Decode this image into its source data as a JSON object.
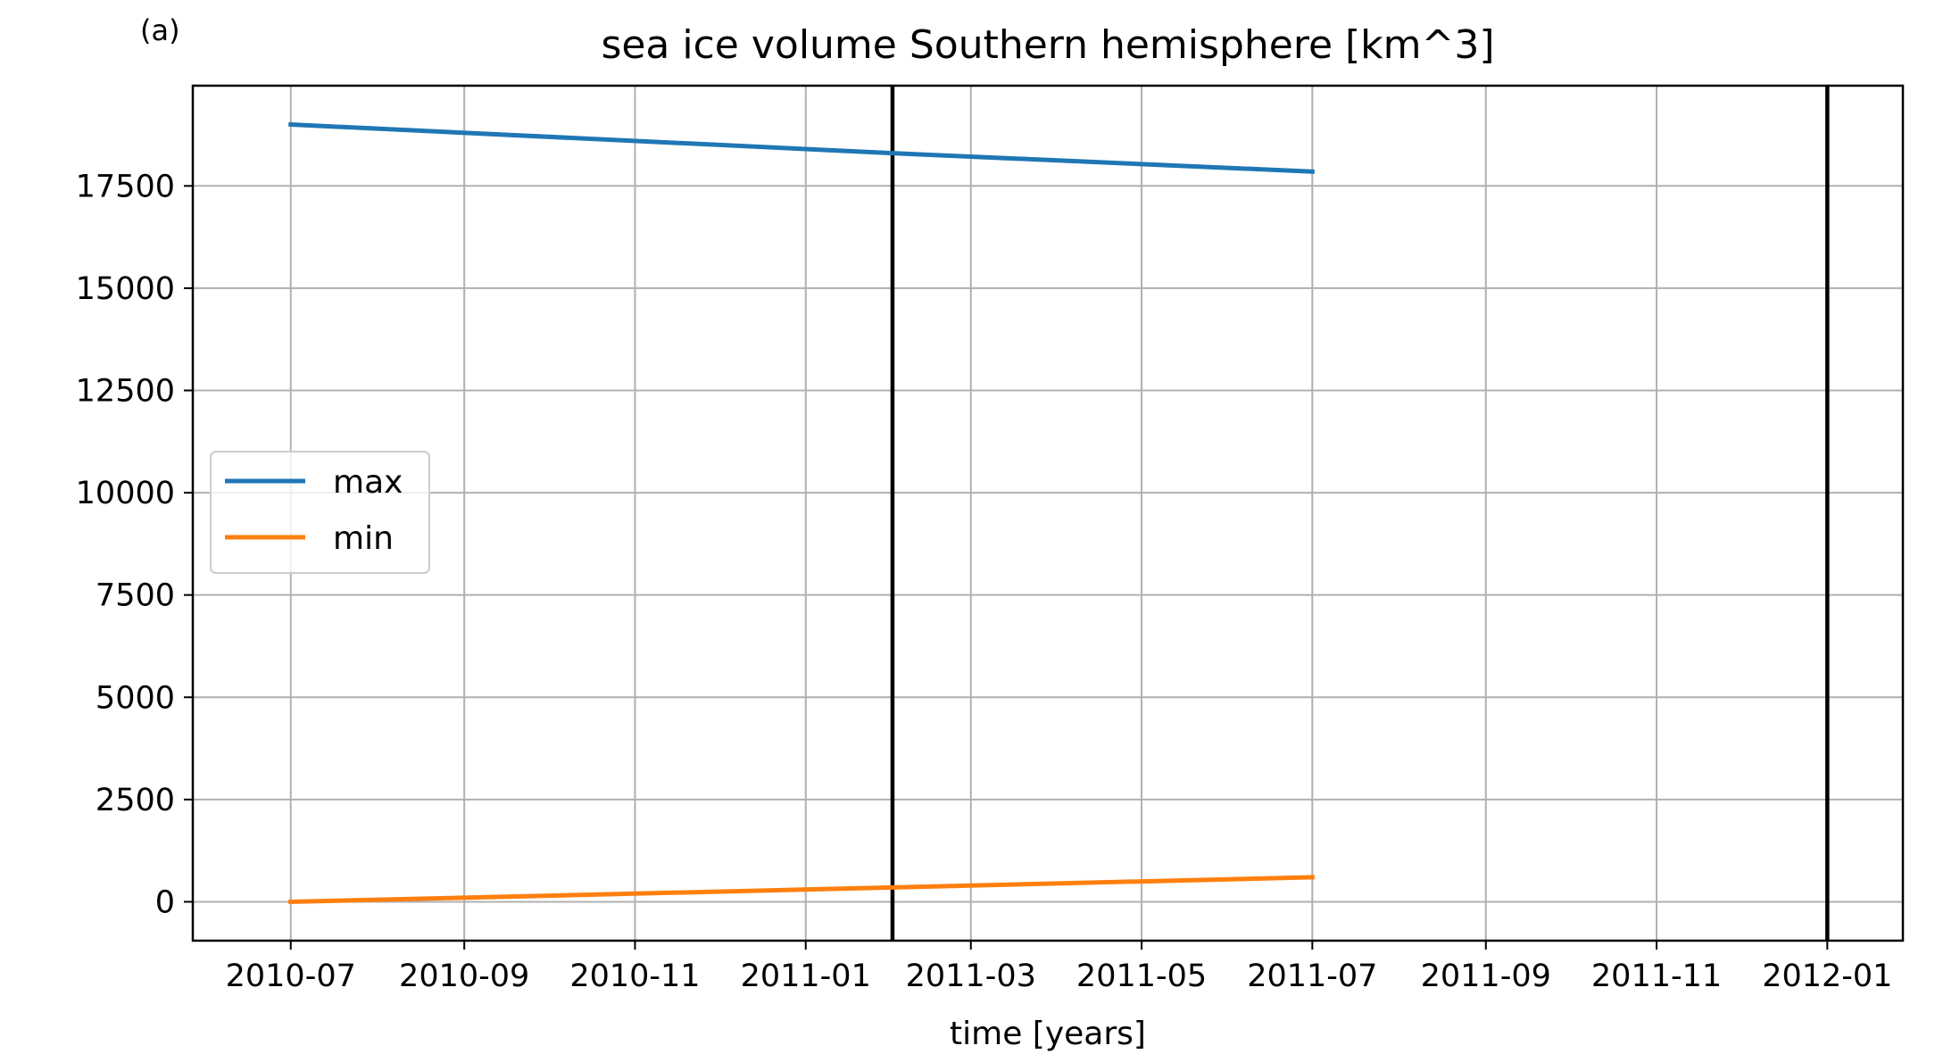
{
  "panel_label": "(a)",
  "chart_data": {
    "type": "line",
    "title": "sea ice volume Southern hemisphere [km^3]",
    "xlabel": "time [years]",
    "ylabel": "",
    "x_tick_labels": [
      "2010-07",
      "2010-09",
      "2010-11",
      "2011-01",
      "2011-03",
      "2011-05",
      "2011-07",
      "2011-09",
      "2011-11",
      "2012-01"
    ],
    "x_ticks": [
      "2010-07-01",
      "2010-09-01",
      "2010-11-01",
      "2011-01-01",
      "2011-03-01",
      "2011-05-01",
      "2011-07-01",
      "2011-09-01",
      "2011-11-01",
      "2012-01-01"
    ],
    "xlim": [
      "2010-05-27",
      "2012-01-28"
    ],
    "y_ticks": [
      0,
      2500,
      5000,
      7500,
      10000,
      12500,
      15000,
      17500
    ],
    "y_tick_labels": [
      "0",
      "2500",
      "5000",
      "7500",
      "10000",
      "12500",
      "15000",
      "17500"
    ],
    "ylim": [
      -950,
      19950
    ],
    "grid": true,
    "legend_position": "center-left",
    "vertical_lines": [
      "2011-02-01",
      "2012-01-01"
    ],
    "series": [
      {
        "name": "max",
        "color": "#1f77b4",
        "x": [
          "2010-07-01",
          "2011-02-01",
          "2011-07-01"
        ],
        "values": [
          19000,
          18300,
          17850
        ]
      },
      {
        "name": "min",
        "color": "#ff7f0e",
        "x": [
          "2010-07-01",
          "2011-02-01",
          "2011-07-01"
        ],
        "values": [
          0,
          350,
          600
        ]
      }
    ]
  }
}
